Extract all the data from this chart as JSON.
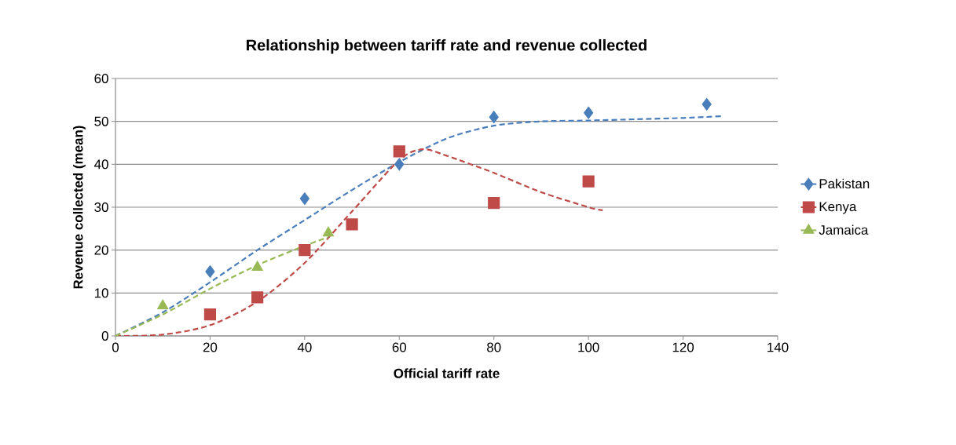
{
  "chart_data": {
    "type": "scatter",
    "title": "Relationship between tariff rate and revenue collected",
    "xlabel": "Official tariff rate",
    "ylabel": "Revenue collected (mean)",
    "xlim": [
      0,
      140
    ],
    "xticks": [
      0,
      20,
      40,
      60,
      80,
      100,
      120,
      140
    ],
    "ylim": [
      0,
      60
    ],
    "yticks": [
      0,
      10,
      20,
      30,
      40,
      50,
      60
    ],
    "grid": "y",
    "legend": "right",
    "series": [
      {
        "name": "Pakistan",
        "color": "#4a7ebb",
        "marker": "diamond",
        "x": [
          20,
          40,
          60,
          80,
          100,
          125
        ],
        "values": [
          15,
          32,
          40,
          51,
          52,
          54
        ]
      },
      {
        "name": "Kenya",
        "color": "#be4b48",
        "marker": "square",
        "x": [
          20,
          30,
          40,
          50,
          60,
          80,
          100
        ],
        "values": [
          5,
          9,
          20,
          26,
          43,
          31,
          36
        ]
      },
      {
        "name": "Jamaica",
        "color": "#98b954",
        "marker": "triangle",
        "x": [
          10,
          30,
          45
        ],
        "values": [
          7,
          16,
          24
        ]
      },
      {
        "type": "line",
        "color": "#4a7ebb",
        "line_style": "dashed",
        "marker": "none",
        "x": [
          0,
          10,
          20,
          30,
          40,
          50,
          60,
          70,
          80,
          90,
          100,
          110,
          120,
          128
        ],
        "values": [
          0,
          5.5,
          12.5,
          20,
          27,
          34,
          40.5,
          46,
          49,
          50,
          50.2,
          50.5,
          50.8,
          51.2
        ]
      },
      {
        "type": "line",
        "color": "#be4b48",
        "line_style": "dashed",
        "marker": "none",
        "x": [
          0,
          10,
          20,
          30,
          40,
          50,
          60,
          65,
          70,
          80,
          90,
          100,
          103
        ],
        "values": [
          0,
          0.3,
          2.5,
          8,
          17,
          29,
          41,
          43.5,
          42,
          38,
          33.5,
          30,
          29.3
        ]
      },
      {
        "type": "line",
        "color": "#98b954",
        "line_style": "dashed",
        "marker": "none",
        "x": [
          0,
          10,
          20,
          30,
          40,
          45
        ],
        "values": [
          0,
          5,
          11,
          16.5,
          21,
          23
        ]
      }
    ]
  }
}
